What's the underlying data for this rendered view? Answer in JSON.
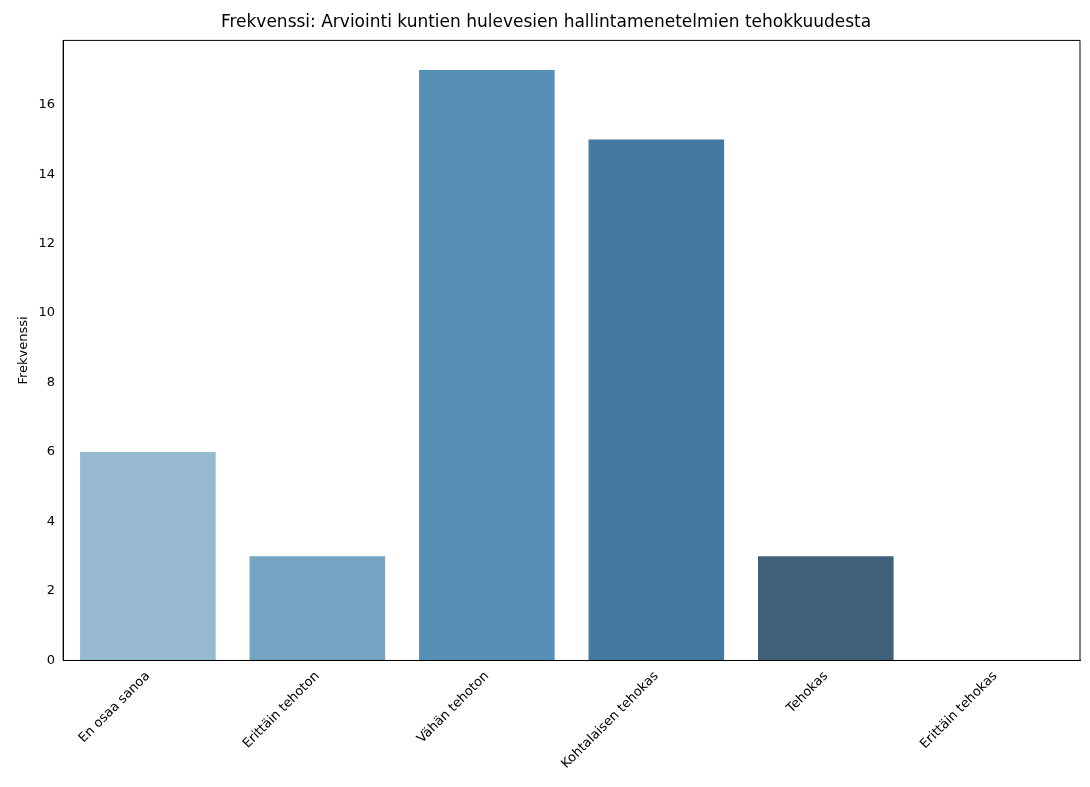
{
  "chart_data": {
    "type": "bar",
    "title": "Frekvenssi: Arviointi kuntien hulevesien hallintamenetelmien tehokkuudesta",
    "ylabel": "Frekvenssi",
    "categories": [
      "En osaa sanoa",
      "Erittäin tehoton",
      "Vähän tehoton",
      "Kohtalaisen tehokas",
      "Tehokas",
      "Erittäin tehokas"
    ],
    "values": [
      6,
      3,
      17,
      15,
      3,
      0
    ],
    "colors": [
      "#97b9d2",
      "#75a5c4",
      "#5790b7",
      "#45799f",
      "#3f6079",
      "#2b3f52"
    ],
    "ylim": [
      0,
      17.85
    ],
    "yticks": [
      0,
      2,
      4,
      6,
      8,
      10,
      12,
      14,
      16
    ],
    "grid": false,
    "legend": false
  }
}
